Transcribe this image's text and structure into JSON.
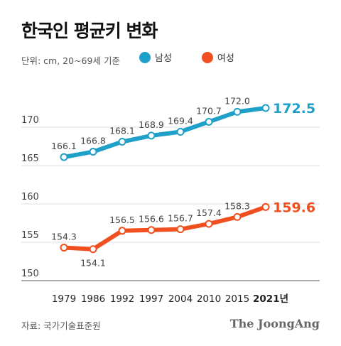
{
  "title": "한국인 평균키 변화",
  "unit": "단위: cm, 20~69세 기준",
  "source": "자료: 국가기술표준원",
  "brand": "The JoongAng",
  "chart_data": {
    "type": "line",
    "title": "한국인 평균키 변화",
    "categories": [
      "1979",
      "1986",
      "1992",
      "1997",
      "2004",
      "2010",
      "2015",
      "2021년"
    ],
    "y_ticks": [
      "170",
      "165",
      "160",
      "155",
      "150"
    ],
    "ylim": [
      150,
      174
    ],
    "grid": true,
    "legend_position": "top",
    "series": [
      {
        "name": "남성",
        "color": "#1fa0c9",
        "values": [
          166.1,
          166.8,
          168.1,
          168.9,
          169.4,
          170.7,
          172.0,
          172.5
        ],
        "labels": [
          "166.1",
          "166.8",
          "168.1",
          "168.9",
          "169.4",
          "170.7",
          "172.0",
          "172.5"
        ]
      },
      {
        "name": "여성",
        "color": "#f0501f",
        "values": [
          154.3,
          154.1,
          156.5,
          156.6,
          156.7,
          157.4,
          158.3,
          159.6
        ],
        "labels": [
          "154.3",
          "154.1",
          "156.5",
          "156.6",
          "156.7",
          "157.4",
          "158.3",
          "159.6"
        ]
      }
    ]
  }
}
